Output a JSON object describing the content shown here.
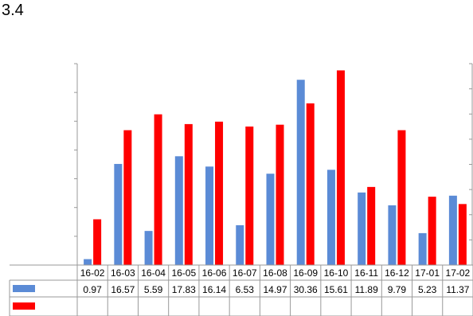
{
  "page_title": "3.4",
  "colors": {
    "series_a": "#5B8BD6",
    "series_b": "#FF0000",
    "grid": "#999999"
  },
  "chart_data": {
    "type": "bar",
    "title": "",
    "xlabel": "",
    "ylabel": "",
    "categories": [
      "16-02",
      "16-03",
      "16-04",
      "16-05",
      "16-06",
      "16-07",
      "16-08",
      "16-09",
      "16-10",
      "16-11",
      "16-12",
      "17-01",
      "17-02"
    ],
    "series": [
      {
        "values": [
          0.97,
          16.57,
          5.59,
          17.83,
          16.14,
          6.53,
          14.97,
          30.36,
          15.61,
          11.89,
          9.79,
          5.23,
          11.37
        ]
      },
      {
        "values": [
          7.5,
          22.1,
          24.7,
          23.1,
          23.5,
          22.7,
          23.0,
          26.5,
          31.9,
          12.8,
          22.1,
          11.2,
          10.0
        ]
      }
    ],
    "legend": "data-table-left",
    "grid": false,
    "ylim": [
      0,
      33
    ]
  }
}
